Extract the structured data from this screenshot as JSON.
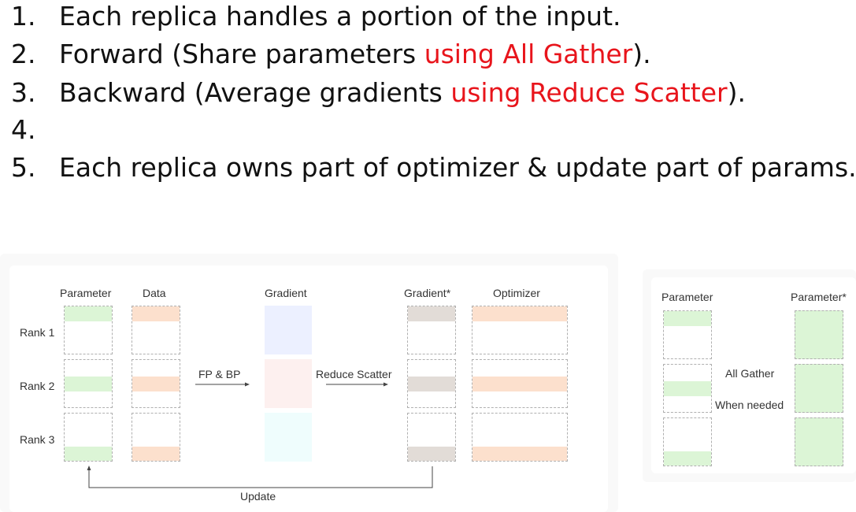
{
  "bullets": [
    {
      "num": "1.",
      "text": "Each replica handles a portion of the input.",
      "highlight": "",
      "suffix": ""
    },
    {
      "num": "2.",
      "text": "Forward (Share parameters ",
      "highlight": "using All Gather",
      "suffix": ")."
    },
    {
      "num": "3.",
      "text": "Backward (Average gradients ",
      "highlight": "using Reduce Scatter",
      "suffix": ")."
    },
    {
      "num": "4.",
      "text": "",
      "highlight": "",
      "suffix": ""
    },
    {
      "num": "5.",
      "text": "Each replica owns part of optimizer & update part of params.",
      "highlight": "",
      "suffix": ""
    }
  ],
  "diagram": {
    "col_parameter": "Parameter",
    "col_data": "Data",
    "col_gradient": "Gradient",
    "col_gradient_star": "Gradient*",
    "col_optimizer": "Optimizer",
    "rank1": "Rank 1",
    "rank2": "Rank 2",
    "rank3": "Rank 3",
    "fp_bp": "FP & BP",
    "reduce_scatter": "Reduce Scatter",
    "update": "Update"
  },
  "gather": {
    "parameter": "Parameter",
    "parameter_star": "Parameter*",
    "all_gather": "All Gather",
    "when_needed": "When needed"
  },
  "colors": {
    "highlight": "#e8141b",
    "parameter_shard": "#dcf5d6",
    "data_shard": "#fce0cd",
    "gradient_rank1": "#ecf0ff",
    "gradient_rank2": "#fdf0ef",
    "gradient_rank3": "#effdfd",
    "gradient_star_shard": "#e2dcd7"
  }
}
